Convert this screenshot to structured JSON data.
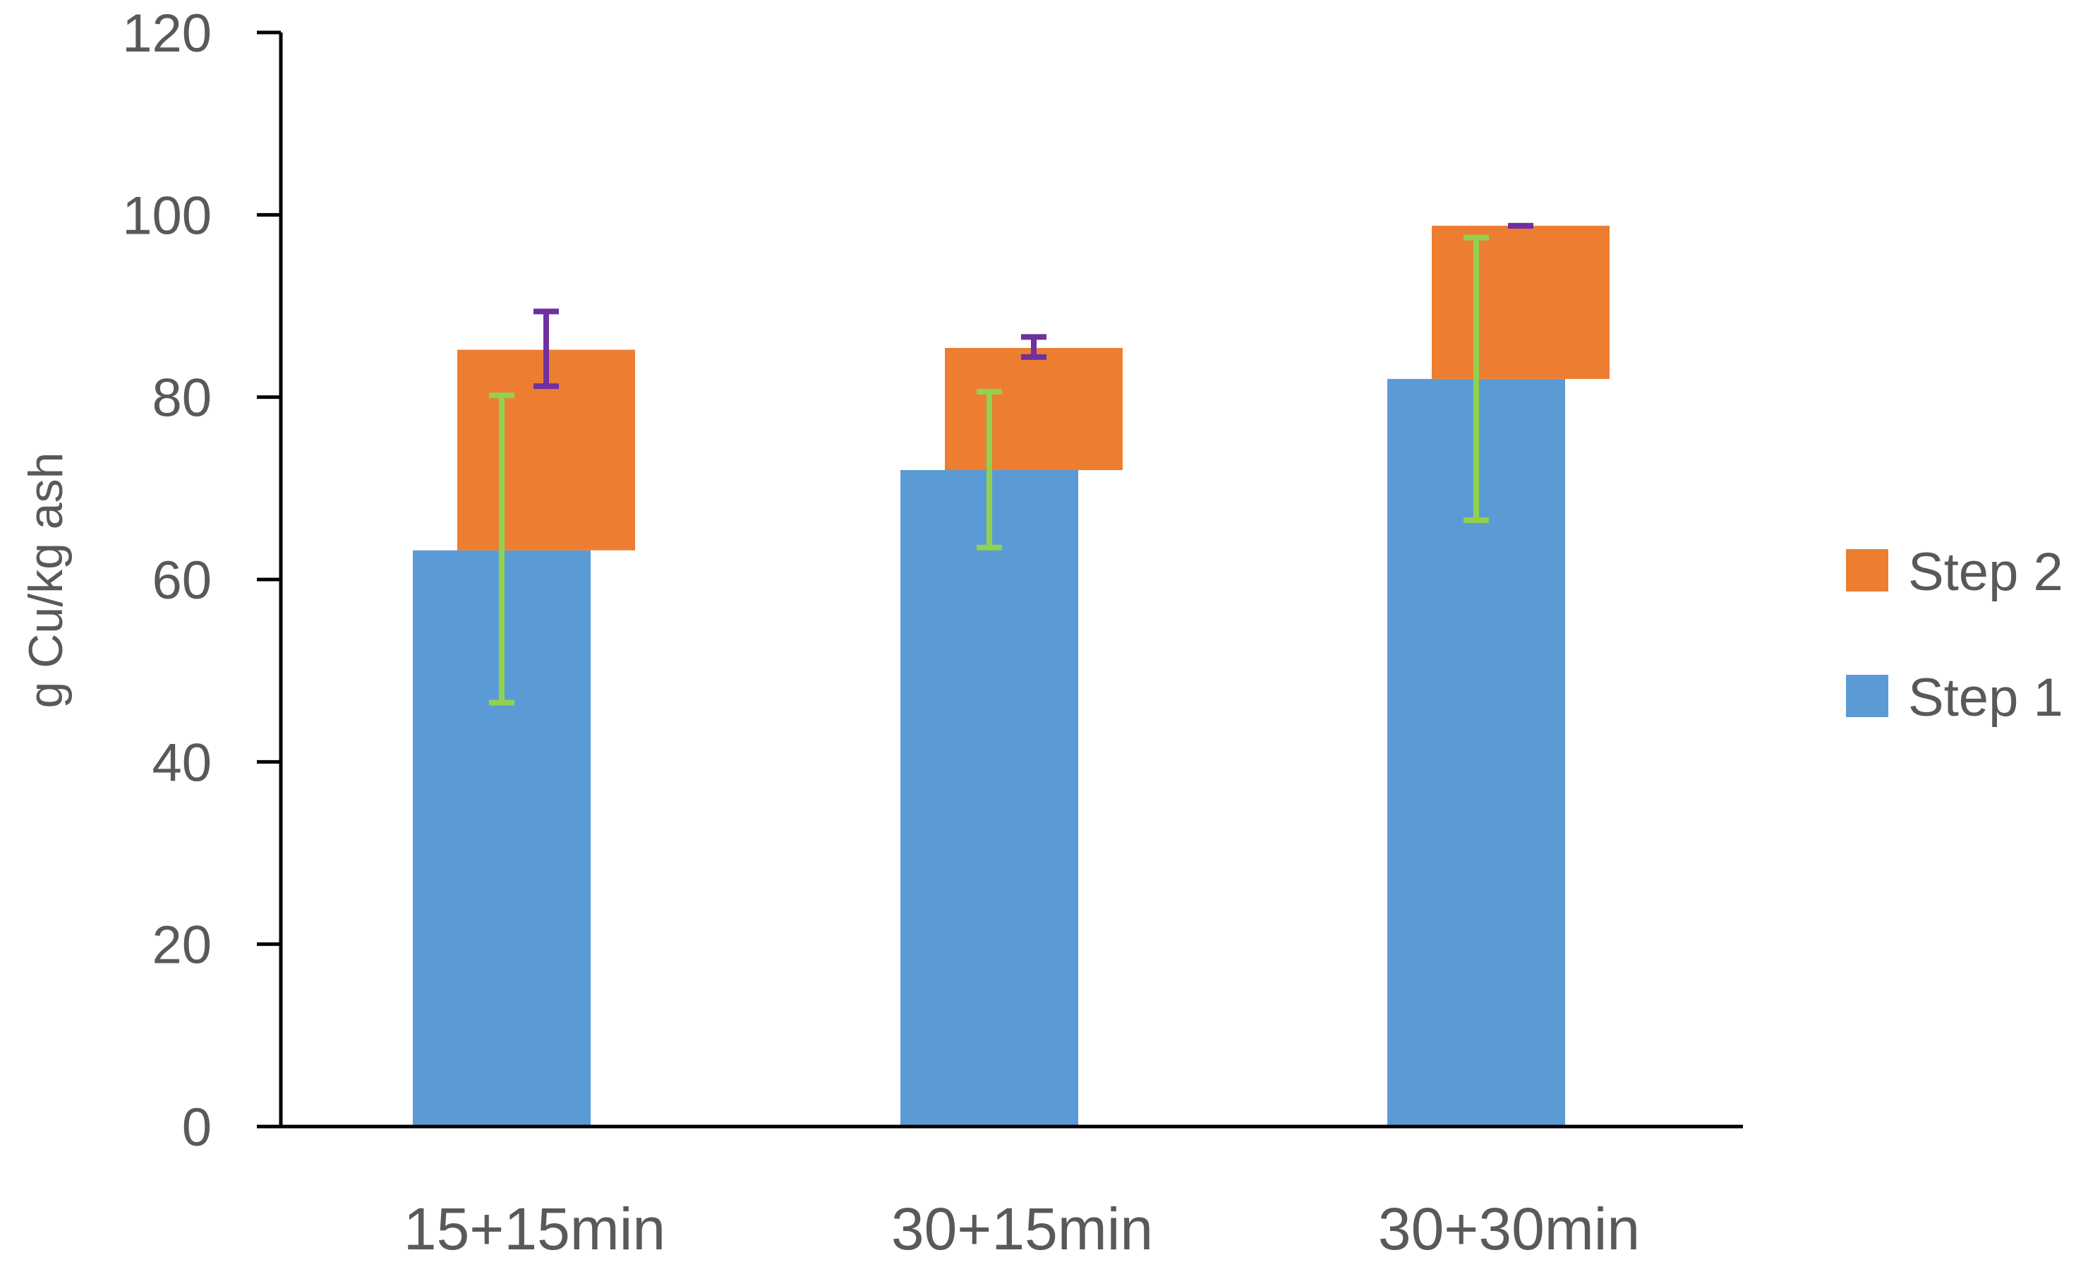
{
  "chart_data": {
    "type": "bar",
    "stacked": true,
    "categories": [
      "15+15min",
      "30+15min",
      "30+30min"
    ],
    "ylabel": "g Cu/kg ash",
    "xlabel": "",
    "ylim": [
      0,
      120
    ],
    "yticks": [
      0,
      20,
      40,
      60,
      80,
      100,
      120
    ],
    "grid": false,
    "legend_position": "right",
    "series": [
      {
        "name": "Step 1",
        "color": "#5B9BD5",
        "values": [
          63.2,
          72.0,
          82.0
        ],
        "error_low": [
          46.5,
          63.5,
          66.5
        ],
        "error_high": [
          80.2,
          80.6,
          97.5
        ],
        "error_color": "#92D050"
      },
      {
        "name": "Step 2",
        "color": "#ED7D31",
        "values": [
          22.0,
          13.4,
          16.8
        ],
        "error_low": [
          81.2,
          84.4,
          98.8
        ],
        "error_high": [
          89.4,
          86.6,
          98.8
        ],
        "error_color": "#7030A0"
      }
    ],
    "legend": [
      "Step 2",
      "Step 1"
    ]
  }
}
